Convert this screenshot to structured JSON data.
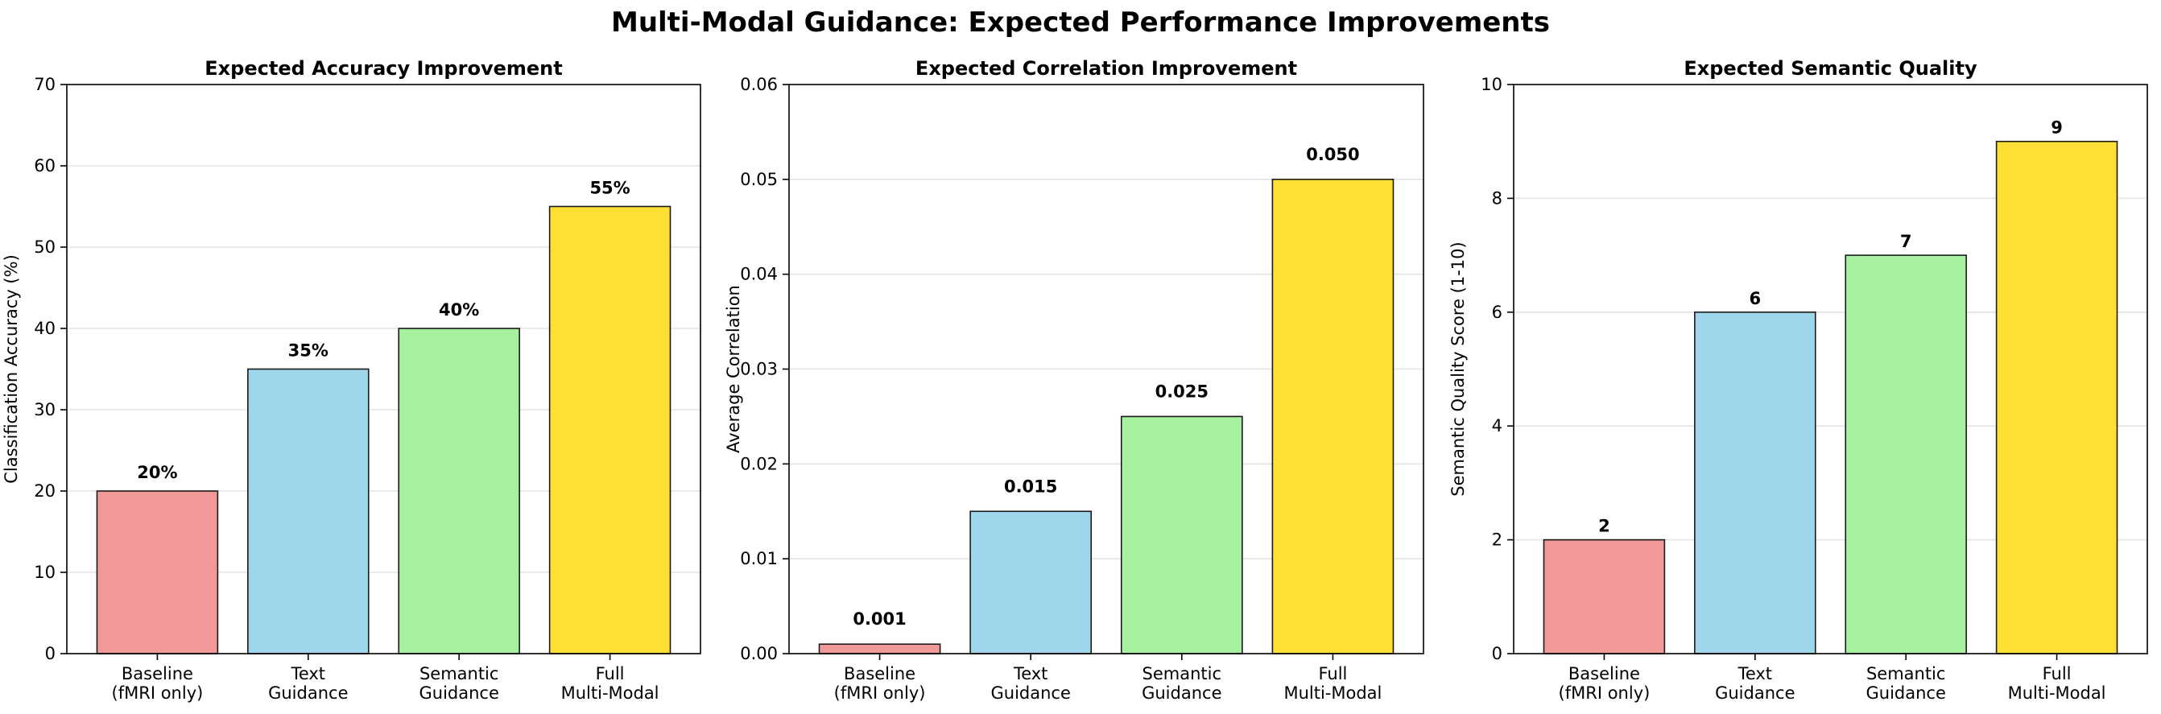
{
  "figure": {
    "suptitle": "Multi-Modal Guidance: Expected Performance Improvements"
  },
  "colors": {
    "baseline": "#f19999",
    "text": "#a0d6ec",
    "semantic": "#a6f0a0",
    "full": "#ffdf33",
    "edge": "#1a1a1a",
    "grid": "#e3e3e3"
  },
  "chart_data": [
    {
      "type": "bar",
      "title": "Expected Accuracy Improvement",
      "xlabel": "",
      "ylabel": "Classification Accuracy (%)",
      "categories": [
        [
          "Baseline",
          "(fMRI only)"
        ],
        [
          "Text",
          "Guidance"
        ],
        [
          "Semantic",
          "Guidance"
        ],
        [
          "Full",
          "Multi-Modal"
        ]
      ],
      "values": [
        20,
        35,
        40,
        55
      ],
      "data_labels": [
        "20%",
        "35%",
        "40%",
        "55%"
      ],
      "ylim": [
        0,
        70
      ],
      "yticks": [
        0,
        10,
        20,
        30,
        40,
        50,
        60,
        70
      ],
      "ytick_labels": [
        "0",
        "10",
        "20",
        "30",
        "40",
        "50",
        "60",
        "70"
      ],
      "grid": "y"
    },
    {
      "type": "bar",
      "title": "Expected Correlation Improvement",
      "xlabel": "",
      "ylabel": "Average Correlation",
      "categories": [
        [
          "Baseline",
          "(fMRI only)"
        ],
        [
          "Text",
          "Guidance"
        ],
        [
          "Semantic",
          "Guidance"
        ],
        [
          "Full",
          "Multi-Modal"
        ]
      ],
      "values": [
        0.001,
        0.015,
        0.025,
        0.05
      ],
      "data_labels": [
        "0.001",
        "0.015",
        "0.025",
        "0.050"
      ],
      "ylim": [
        0,
        0.06
      ],
      "yticks": [
        0,
        0.01,
        0.02,
        0.03,
        0.04,
        0.05,
        0.06
      ],
      "ytick_labels": [
        "0.00",
        "0.01",
        "0.02",
        "0.03",
        "0.04",
        "0.05",
        "0.06"
      ],
      "grid": "y"
    },
    {
      "type": "bar",
      "title": "Expected Semantic Quality",
      "xlabel": "",
      "ylabel": "Semantic Quality Score (1-10)",
      "categories": [
        [
          "Baseline",
          "(fMRI only)"
        ],
        [
          "Text",
          "Guidance"
        ],
        [
          "Semantic",
          "Guidance"
        ],
        [
          "Full",
          "Multi-Modal"
        ]
      ],
      "values": [
        2,
        6,
        7,
        9
      ],
      "data_labels": [
        "2",
        "6",
        "7",
        "9"
      ],
      "ylim": [
        0,
        10
      ],
      "yticks": [
        0,
        2,
        4,
        6,
        8,
        10
      ],
      "ytick_labels": [
        "0",
        "2",
        "4",
        "6",
        "8",
        "10"
      ],
      "grid": "y"
    }
  ]
}
